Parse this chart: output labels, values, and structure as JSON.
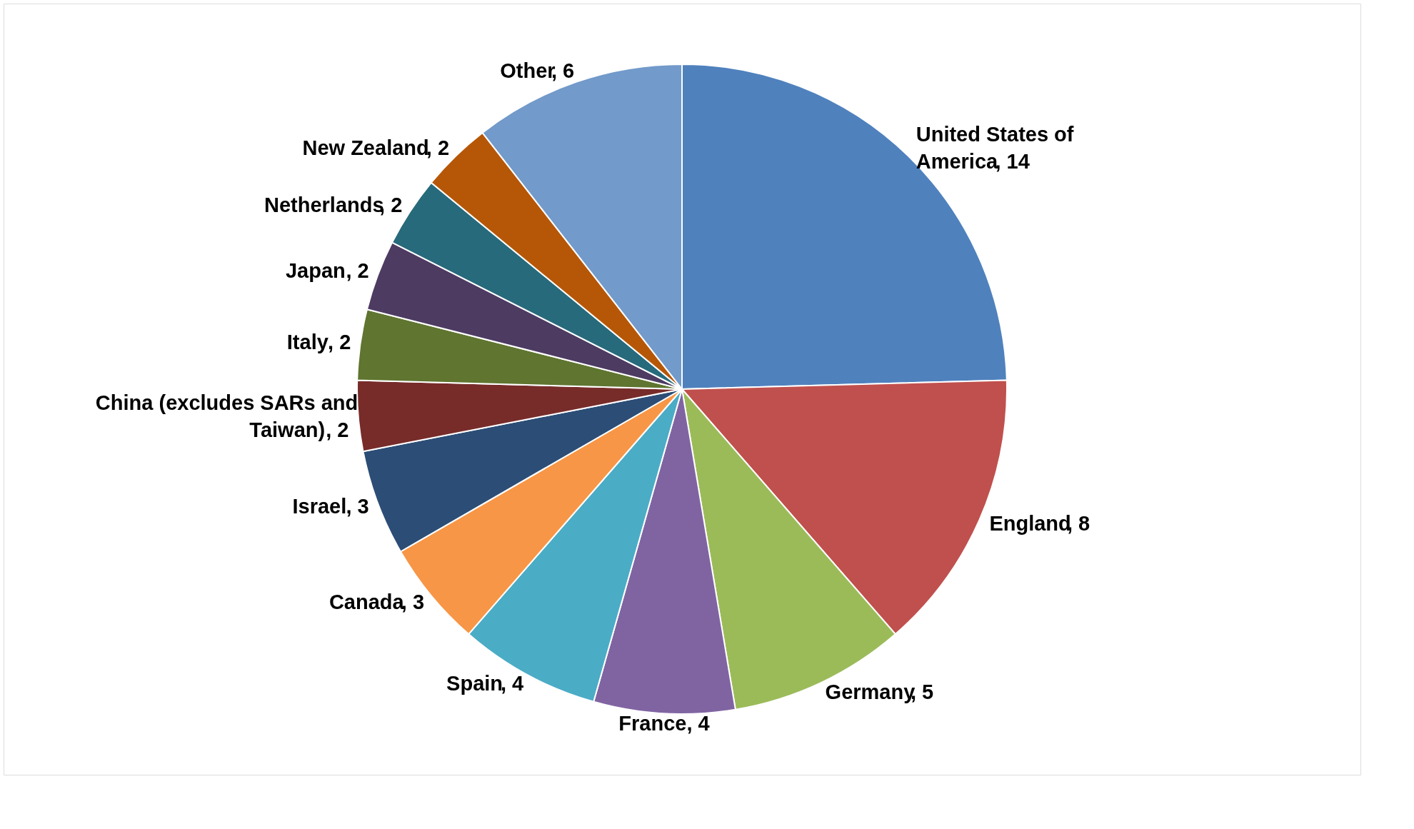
{
  "chart_data": {
    "type": "pie",
    "categories": [
      "United States of America",
      "England",
      "Germany",
      "France",
      "Spain",
      "Canada",
      "Israel",
      "China (excludes SARs and Taiwan)",
      "Italy",
      "Japan",
      "Netherlands",
      "New Zealand",
      "Other"
    ],
    "values": [
      14,
      8,
      5,
      4,
      4,
      3,
      3,
      2,
      2,
      2,
      2,
      2,
      6
    ],
    "colors": [
      "#4f81bd",
      "#c0504d",
      "#9bbb59",
      "#8064a2",
      "#4bacc6",
      "#f79646",
      "#2c4d75",
      "#772c2a",
      "#5f7530",
      "#4d3b62",
      "#276a7c",
      "#b65708",
      "#729aca"
    ],
    "value_labels": [
      ", 14",
      ", 8",
      ", 5",
      ", 4",
      ", 4",
      ", 3",
      ", 3",
      ", 2",
      ", 2",
      ", 2",
      ", 2",
      ", 2",
      ", 6"
    ],
    "legend": false
  }
}
